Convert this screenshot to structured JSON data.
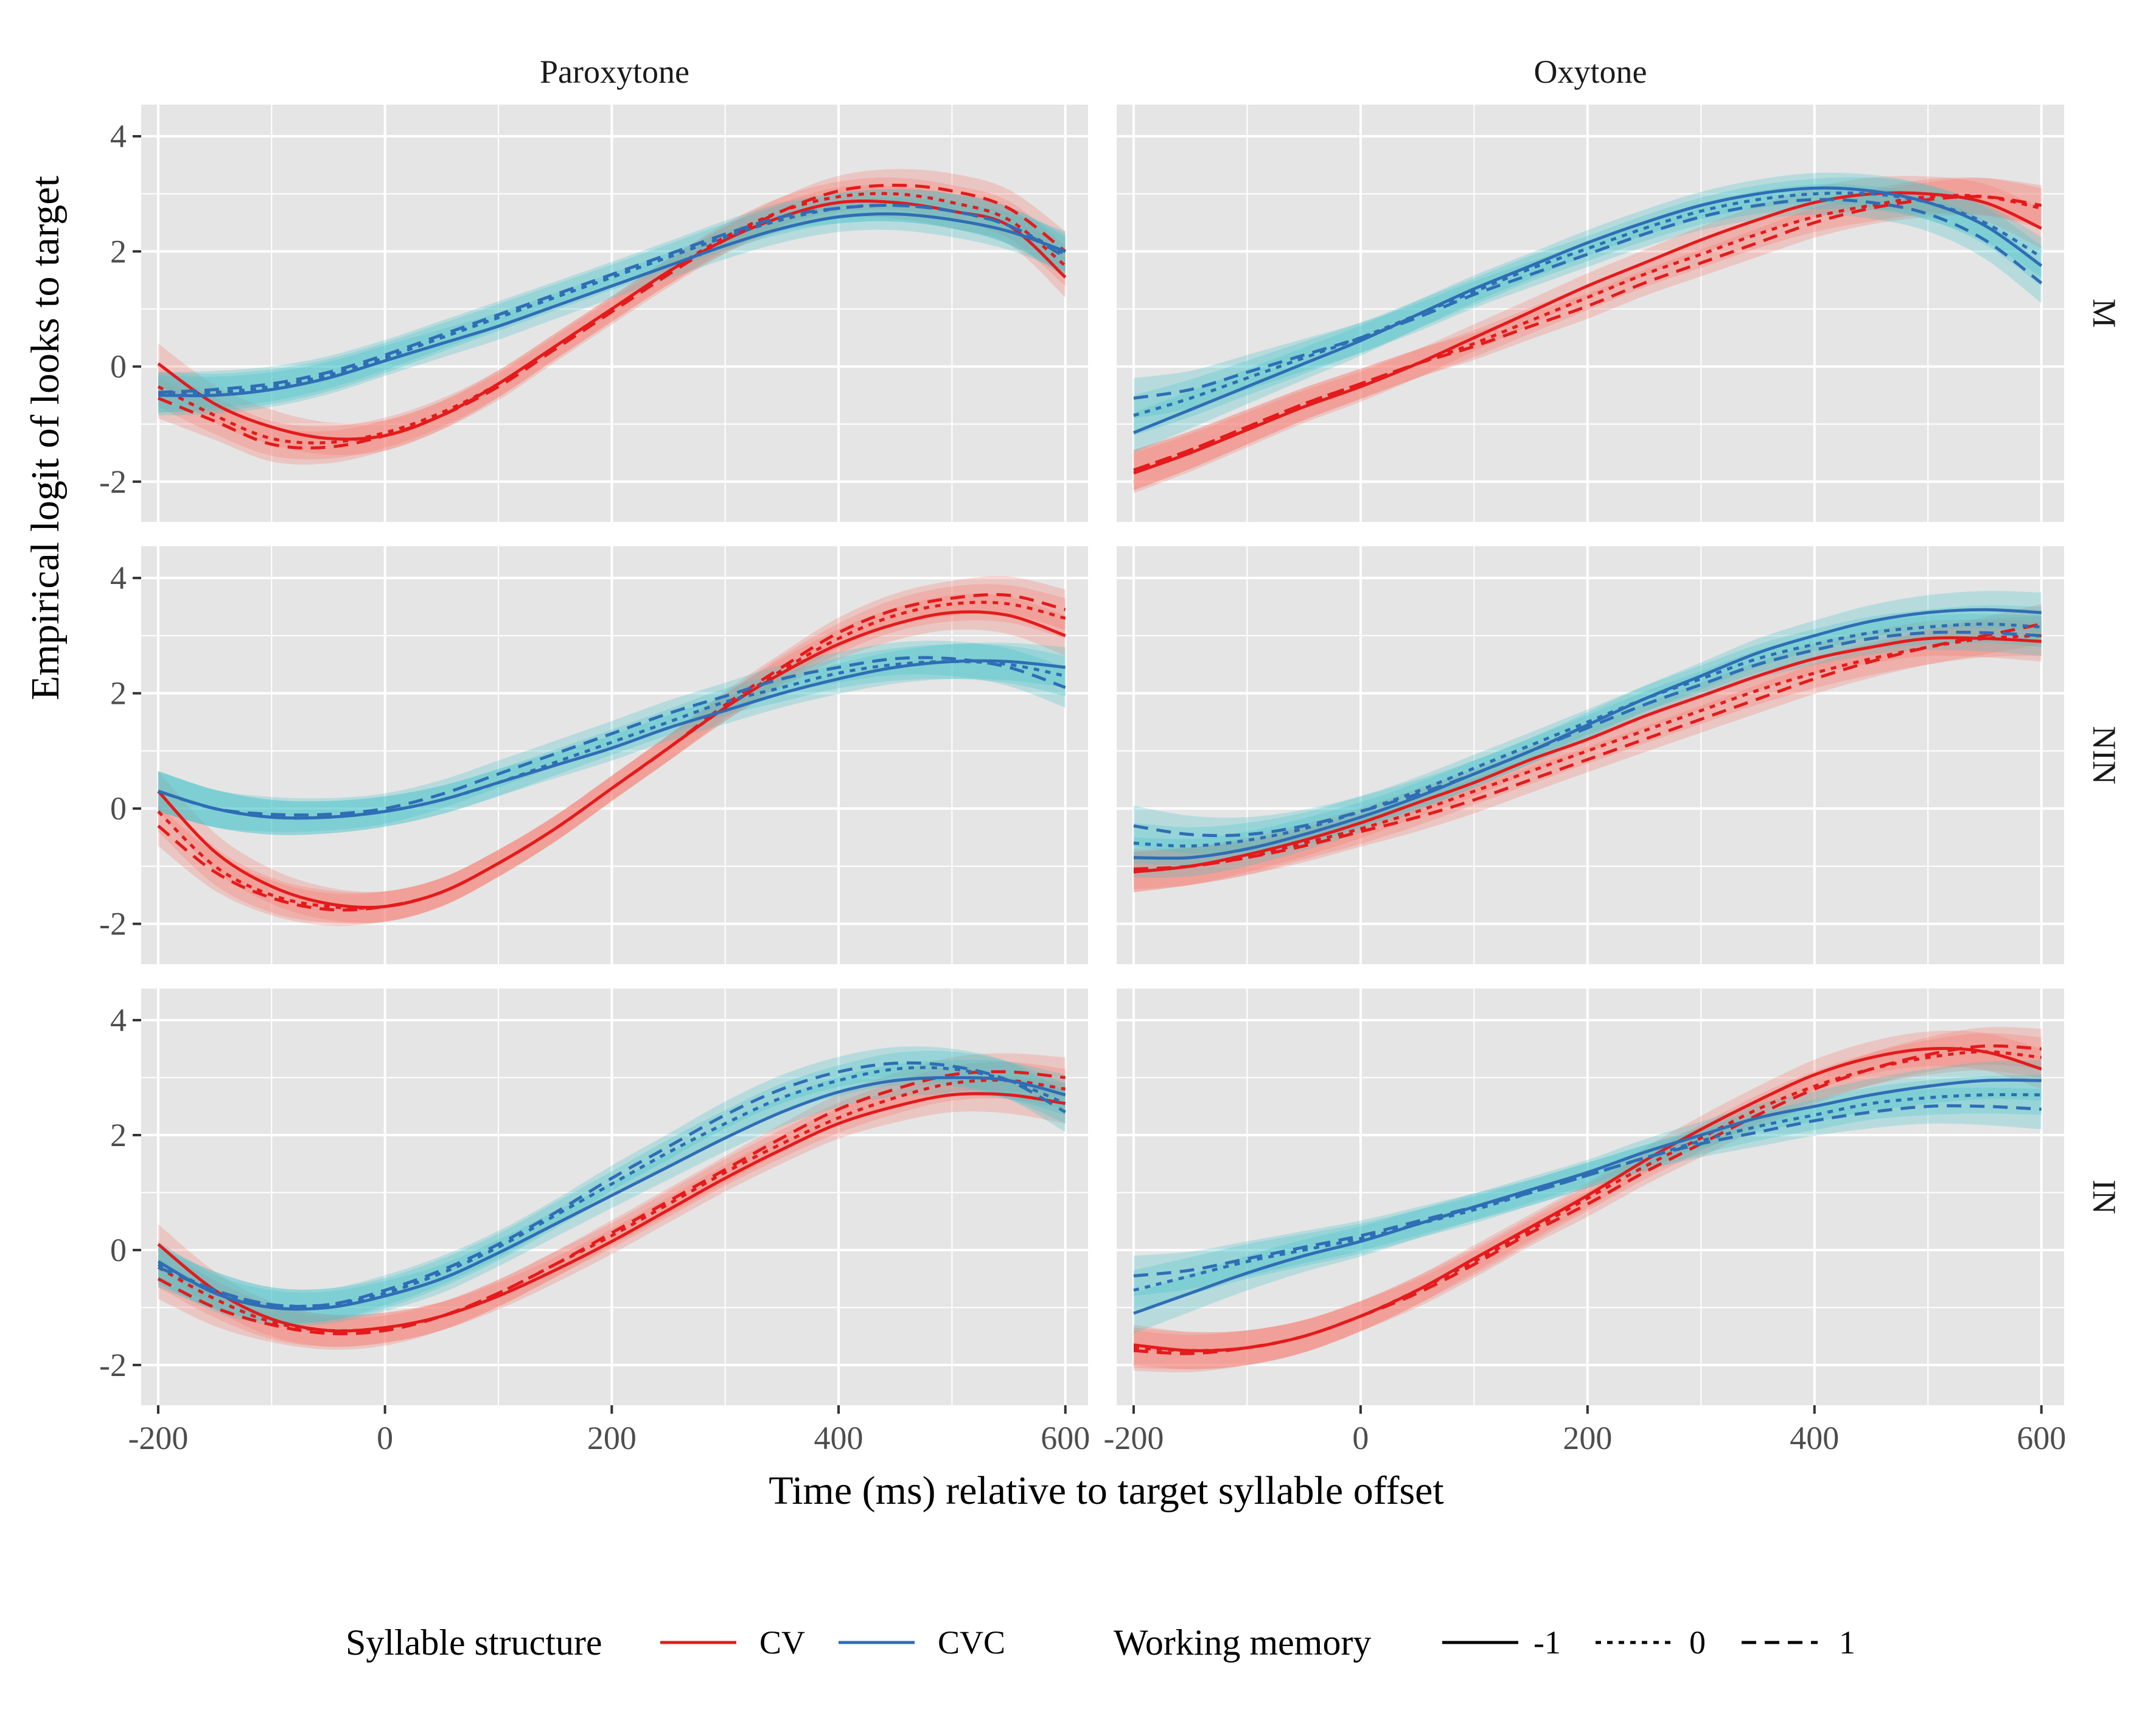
{
  "chart_data": {
    "type": "line",
    "xlabel": "Time (ms) relative to target syllable offset",
    "ylabel": "Empirical logit of looks to target",
    "xlim": [
      -215,
      620
    ],
    "ylim": [
      -2.7,
      4.55
    ],
    "xticks": [
      -200,
      0,
      200,
      400,
      600
    ],
    "yticks": [
      -2,
      0,
      2,
      4
    ],
    "ytick_labels": [
      "-2",
      "0",
      "2",
      "4"
    ],
    "columns": [
      "Paroxytone",
      "Oxytone"
    ],
    "rows": [
      "M",
      "NIN",
      "IN"
    ],
    "x": [
      -200,
      -150,
      -100,
      -50,
      0,
      50,
      100,
      150,
      200,
      250,
      300,
      350,
      400,
      450,
      500,
      550,
      600
    ],
    "grid": true,
    "ribbons": "95% confidence bands around each series",
    "legend": {
      "position": "bottom",
      "syllable_title": "Syllable structure",
      "wm_title": "Working memory",
      "syllable": [
        {
          "label": "CV",
          "color": "#e41a1c"
        },
        {
          "label": "CVC",
          "color": "#2f6db5"
        }
      ],
      "wm": [
        {
          "label": "-1",
          "dash": "solid"
        },
        {
          "label": "0",
          "dash": "dotted"
        },
        {
          "label": "1",
          "dash": "dashed"
        }
      ]
    },
    "colors": {
      "CV_line": "#e41a1c",
      "CVC_line": "#2f6db5",
      "CV_band": "#f8766d",
      "CVC_band": "#3fc1c9",
      "panel_bg": "#e5e5e5",
      "grid": "#ffffff"
    },
    "panels": [
      {
        "column": "Paroxytone",
        "row": "M",
        "series": [
          {
            "syllable": "CV",
            "wm": "-1",
            "values": [
              0.05,
              -0.65,
              -1.05,
              -1.25,
              -1.2,
              -0.85,
              -0.3,
              0.35,
              1.0,
              1.65,
              2.2,
              2.6,
              2.85,
              2.85,
              2.7,
              2.45,
              1.55
            ]
          },
          {
            "syllable": "CV",
            "wm": "0",
            "values": [
              -0.35,
              -0.85,
              -1.25,
              -1.32,
              -1.15,
              -0.8,
              -0.3,
              0.35,
              1.0,
              1.65,
              2.25,
              2.7,
              2.95,
              3.0,
              2.85,
              2.55,
              1.75
            ]
          },
          {
            "syllable": "CV",
            "wm": "1",
            "values": [
              -0.55,
              -0.95,
              -1.35,
              -1.4,
              -1.2,
              -0.85,
              -0.35,
              0.3,
              0.95,
              1.6,
              2.2,
              2.7,
              3.05,
              3.15,
              3.05,
              2.75,
              2.0
            ]
          },
          {
            "syllable": "CVC",
            "wm": "-1",
            "values": [
              -0.5,
              -0.5,
              -0.4,
              -0.2,
              0.1,
              0.4,
              0.7,
              1.05,
              1.4,
              1.75,
              2.1,
              2.4,
              2.6,
              2.65,
              2.55,
              2.35,
              2.0
            ]
          },
          {
            "syllable": "CVC",
            "wm": "0",
            "values": [
              -0.45,
              -0.45,
              -0.35,
              -0.15,
              0.15,
              0.5,
              0.85,
              1.2,
              1.55,
              1.9,
              2.25,
              2.55,
              2.75,
              2.8,
              2.7,
              2.45,
              1.95
            ]
          },
          {
            "syllable": "CVC",
            "wm": "1",
            "values": [
              -0.45,
              -0.4,
              -0.3,
              -0.1,
              0.2,
              0.55,
              0.9,
              1.25,
              1.6,
              1.95,
              2.3,
              2.6,
              2.75,
              2.8,
              2.7,
              2.45,
              1.9
            ]
          }
        ]
      },
      {
        "column": "Oxytone",
        "row": "M",
        "series": [
          {
            "syllable": "CV",
            "wm": "-1",
            "values": [
              -1.85,
              -1.5,
              -1.1,
              -0.7,
              -0.35,
              0.05,
              0.5,
              0.95,
              1.4,
              1.8,
              2.2,
              2.55,
              2.85,
              3.0,
              3.0,
              2.85,
              2.4
            ]
          },
          {
            "syllable": "CV",
            "wm": "0",
            "values": [
              -1.8,
              -1.45,
              -1.05,
              -0.65,
              -0.3,
              0.05,
              0.4,
              0.8,
              1.2,
              1.6,
              1.95,
              2.3,
              2.6,
              2.8,
              2.95,
              2.95,
              2.75
            ]
          },
          {
            "syllable": "CV",
            "wm": "1",
            "values": [
              -1.8,
              -1.45,
              -1.05,
              -0.65,
              -0.3,
              0.05,
              0.35,
              0.7,
              1.05,
              1.45,
              1.8,
              2.15,
              2.5,
              2.75,
              2.9,
              2.95,
              2.8
            ]
          },
          {
            "syllable": "CVC",
            "wm": "-1",
            "values": [
              -1.15,
              -0.75,
              -0.35,
              0.05,
              0.45,
              0.9,
              1.35,
              1.75,
              2.15,
              2.5,
              2.8,
              3.0,
              3.1,
              3.05,
              2.85,
              2.45,
              1.75
            ]
          },
          {
            "syllable": "CVC",
            "wm": "0",
            "values": [
              -0.85,
              -0.55,
              -0.2,
              0.15,
              0.5,
              0.9,
              1.3,
              1.7,
              2.05,
              2.4,
              2.7,
              2.9,
              3.0,
              3.0,
              2.85,
              2.5,
              1.9
            ]
          },
          {
            "syllable": "CVC",
            "wm": "1",
            "values": [
              -0.55,
              -0.4,
              -0.1,
              0.2,
              0.5,
              0.85,
              1.25,
              1.6,
              1.95,
              2.3,
              2.6,
              2.8,
              2.9,
              2.85,
              2.65,
              2.2,
              1.45
            ]
          }
        ]
      },
      {
        "column": "Paroxytone",
        "row": "NIN",
        "series": [
          {
            "syllable": "CV",
            "wm": "-1",
            "values": [
              0.3,
              -0.75,
              -1.35,
              -1.65,
              -1.7,
              -1.45,
              -0.95,
              -0.35,
              0.35,
              1.05,
              1.75,
              2.35,
              2.85,
              3.2,
              3.4,
              3.35,
              3.0
            ]
          },
          {
            "syllable": "CV",
            "wm": "0",
            "values": [
              -0.05,
              -1.0,
              -1.5,
              -1.7,
              -1.7,
              -1.45,
              -0.95,
              -0.35,
              0.35,
              1.05,
              1.75,
              2.4,
              2.95,
              3.35,
              3.55,
              3.55,
              3.3
            ]
          },
          {
            "syllable": "CV",
            "wm": "1",
            "values": [
              -0.3,
              -1.1,
              -1.55,
              -1.75,
              -1.7,
              -1.45,
              -0.95,
              -0.35,
              0.35,
              1.05,
              1.8,
              2.45,
              3.05,
              3.45,
              3.65,
              3.7,
              3.45
            ]
          },
          {
            "syllable": "CVC",
            "wm": "-1",
            "values": [
              0.3,
              0.0,
              -0.15,
              -0.15,
              -0.05,
              0.15,
              0.45,
              0.75,
              1.05,
              1.4,
              1.7,
              2.0,
              2.25,
              2.45,
              2.55,
              2.55,
              2.45
            ]
          },
          {
            "syllable": "CVC",
            "wm": "0",
            "values": [
              0.3,
              0.0,
              -0.15,
              -0.15,
              -0.05,
              0.15,
              0.45,
              0.8,
              1.15,
              1.5,
              1.85,
              2.1,
              2.35,
              2.5,
              2.55,
              2.5,
              2.3
            ]
          },
          {
            "syllable": "CVC",
            "wm": "1",
            "values": [
              0.3,
              0.0,
              -0.1,
              -0.1,
              0.0,
              0.25,
              0.6,
              0.95,
              1.3,
              1.65,
              1.95,
              2.25,
              2.45,
              2.6,
              2.6,
              2.45,
              2.1
            ]
          }
        ]
      },
      {
        "column": "Oxytone",
        "row": "NIN",
        "series": [
          {
            "syllable": "CV",
            "wm": "-1",
            "values": [
              -1.1,
              -1.0,
              -0.8,
              -0.55,
              -0.25,
              0.1,
              0.45,
              0.85,
              1.2,
              1.6,
              1.95,
              2.3,
              2.6,
              2.8,
              2.95,
              2.95,
              2.9
            ]
          },
          {
            "syllable": "CV",
            "wm": "0",
            "values": [
              -1.1,
              -1.0,
              -0.85,
              -0.6,
              -0.35,
              -0.05,
              0.3,
              0.65,
              1.0,
              1.35,
              1.7,
              2.05,
              2.35,
              2.6,
              2.8,
              2.95,
              3.0
            ]
          },
          {
            "syllable": "CV",
            "wm": "1",
            "values": [
              -1.05,
              -1.0,
              -0.85,
              -0.65,
              -0.4,
              -0.15,
              0.15,
              0.5,
              0.85,
              1.2,
              1.55,
              1.9,
              2.25,
              2.55,
              2.8,
              3.0,
              3.2
            ]
          },
          {
            "syllable": "CVC",
            "wm": "-1",
            "values": [
              -0.85,
              -0.85,
              -0.7,
              -0.45,
              -0.15,
              0.2,
              0.6,
              1.0,
              1.45,
              1.9,
              2.3,
              2.7,
              3.0,
              3.25,
              3.4,
              3.45,
              3.4
            ]
          },
          {
            "syllable": "CVC",
            "wm": "0",
            "values": [
              -0.6,
              -0.65,
              -0.55,
              -0.35,
              -0.05,
              0.3,
              0.7,
              1.1,
              1.5,
              1.9,
              2.25,
              2.6,
              2.85,
              3.05,
              3.15,
              3.2,
              3.15
            ]
          },
          {
            "syllable": "CVC",
            "wm": "1",
            "values": [
              -0.3,
              -0.45,
              -0.45,
              -0.3,
              -0.05,
              0.25,
              0.6,
              1.0,
              1.4,
              1.8,
              2.15,
              2.5,
              2.75,
              2.95,
              3.05,
              3.05,
              3.0
            ]
          }
        ]
      },
      {
        "column": "Paroxytone",
        "row": "IN",
        "series": [
          {
            "syllable": "CV",
            "wm": "-1",
            "values": [
              0.1,
              -0.7,
              -1.2,
              -1.4,
              -1.35,
              -1.15,
              -0.8,
              -0.35,
              0.15,
              0.7,
              1.25,
              1.75,
              2.2,
              2.5,
              2.7,
              2.7,
              2.55
            ]
          },
          {
            "syllable": "CV",
            "wm": "0",
            "values": [
              -0.3,
              -0.85,
              -1.25,
              -1.4,
              -1.35,
              -1.15,
              -0.75,
              -0.25,
              0.25,
              0.8,
              1.35,
              1.85,
              2.3,
              2.65,
              2.9,
              2.95,
              2.8
            ]
          },
          {
            "syllable": "CV",
            "wm": "1",
            "values": [
              -0.5,
              -1.0,
              -1.3,
              -1.45,
              -1.4,
              -1.15,
              -0.75,
              -0.25,
              0.3,
              0.85,
              1.4,
              1.95,
              2.45,
              2.8,
              3.05,
              3.1,
              3.0
            ]
          },
          {
            "syllable": "CVC",
            "wm": "-1",
            "values": [
              -0.2,
              -0.75,
              -1.0,
              -1.0,
              -0.8,
              -0.5,
              -0.05,
              0.45,
              0.95,
              1.45,
              1.95,
              2.4,
              2.75,
              2.95,
              3.0,
              2.95,
              2.7
            ]
          },
          {
            "syllable": "CVC",
            "wm": "0",
            "values": [
              -0.25,
              -0.7,
              -0.95,
              -0.95,
              -0.75,
              -0.4,
              0.05,
              0.6,
              1.15,
              1.7,
              2.2,
              2.65,
              2.95,
              3.15,
              3.15,
              2.95,
              2.55
            ]
          },
          {
            "syllable": "CVC",
            "wm": "1",
            "values": [
              -0.3,
              -0.7,
              -0.95,
              -0.95,
              -0.7,
              -0.35,
              0.1,
              0.65,
              1.25,
              1.8,
              2.35,
              2.8,
              3.1,
              3.25,
              3.2,
              2.95,
              2.4
            ]
          }
        ]
      },
      {
        "column": "Oxytone",
        "row": "IN",
        "series": [
          {
            "syllable": "CV",
            "wm": "-1",
            "values": [
              -1.65,
              -1.75,
              -1.7,
              -1.5,
              -1.15,
              -0.7,
              -0.15,
              0.4,
              0.95,
              1.55,
              2.1,
              2.6,
              3.05,
              3.35,
              3.5,
              3.45,
              3.15
            ]
          },
          {
            "syllable": "CV",
            "wm": "0",
            "values": [
              -1.7,
              -1.75,
              -1.7,
              -1.5,
              -1.15,
              -0.7,
              -0.2,
              0.35,
              0.9,
              1.45,
              1.95,
              2.45,
              2.85,
              3.15,
              3.35,
              3.45,
              3.35
            ]
          },
          {
            "syllable": "CV",
            "wm": "1",
            "values": [
              -1.75,
              -1.8,
              -1.7,
              -1.5,
              -1.15,
              -0.75,
              -0.25,
              0.3,
              0.8,
              1.35,
              1.85,
              2.35,
              2.8,
              3.15,
              3.4,
              3.55,
              3.5
            ]
          },
          {
            "syllable": "CVC",
            "wm": "-1",
            "values": [
              -1.1,
              -0.75,
              -0.4,
              -0.1,
              0.15,
              0.45,
              0.75,
              1.05,
              1.35,
              1.7,
              2.0,
              2.3,
              2.5,
              2.7,
              2.85,
              2.95,
              2.95
            ]
          },
          {
            "syllable": "CVC",
            "wm": "0",
            "values": [
              -0.7,
              -0.45,
              -0.2,
              0.0,
              0.2,
              0.45,
              0.7,
              1.0,
              1.3,
              1.6,
              1.9,
              2.15,
              2.35,
              2.55,
              2.65,
              2.7,
              2.7
            ]
          },
          {
            "syllable": "CVC",
            "wm": "1",
            "values": [
              -0.45,
              -0.35,
              -0.15,
              0.05,
              0.25,
              0.5,
              0.75,
              1.0,
              1.3,
              1.6,
              1.85,
              2.05,
              2.25,
              2.4,
              2.5,
              2.5,
              2.45
            ]
          }
        ]
      }
    ]
  }
}
